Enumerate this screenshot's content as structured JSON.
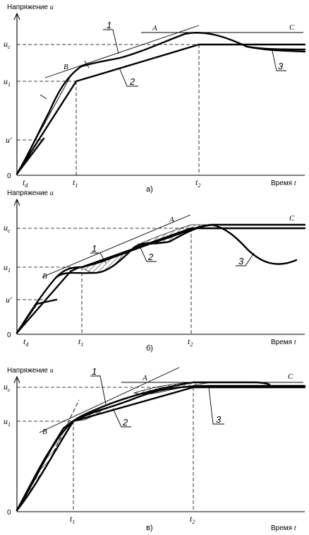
{
  "panels": [
    {
      "id": "a",
      "y_axis_title": "Напряжение",
      "y_axis_var": "u",
      "x_axis_title": "Время",
      "x_axis_var": "t",
      "origin": "0",
      "tick_td": "t",
      "tick_td_sub": "d",
      "tick_t1": "t",
      "tick_t1_sub": "1",
      "tick_t2": "t",
      "tick_t2_sub": "2",
      "ytick_uc": "u",
      "ytick_uc_sub": "c",
      "ytick_u1": "u",
      "ytick_u1_sub": "1",
      "ytick_uprime": "u'",
      "point_A": "A",
      "point_B": "B",
      "point_C": "C",
      "curve_1": "1",
      "curve_2": "2",
      "curve_3": "3",
      "caption": "а)"
    },
    {
      "id": "b",
      "y_axis_title": "Напряжение",
      "y_axis_var": "u",
      "x_axis_title": "Время",
      "x_axis_var": "t",
      "origin": "0",
      "tick_td": "t",
      "tick_td_sub": "d",
      "tick_t1": "t",
      "tick_t1_sub": "1",
      "tick_t2": "t",
      "tick_t2_sub": "2",
      "ytick_uc": "u",
      "ytick_uc_sub": "c",
      "ytick_u1": "u",
      "ytick_u1_sub": "1",
      "ytick_uprime": "u'",
      "point_A": "A",
      "point_B": "B",
      "point_C": "C",
      "curve_1": "1",
      "curve_2": "2",
      "curve_3": "3",
      "caption": "б)"
    },
    {
      "id": "c",
      "y_axis_title": "Напряжение",
      "y_axis_var": "u",
      "x_axis_title": "Время",
      "x_axis_var": "t",
      "origin": "0",
      "tick_t1": "t",
      "tick_t1_sub": "1",
      "tick_t2": "t",
      "tick_t2_sub": "2",
      "ytick_uc": "u",
      "ytick_uc_sub": "c",
      "ytick_u1": "u",
      "ytick_u1_sub": "1",
      "point_A": "A",
      "point_B": "B",
      "point_C": "C",
      "curve_1": "1",
      "curve_2": "2",
      "curve_3": "3",
      "caption": "в)"
    }
  ]
}
